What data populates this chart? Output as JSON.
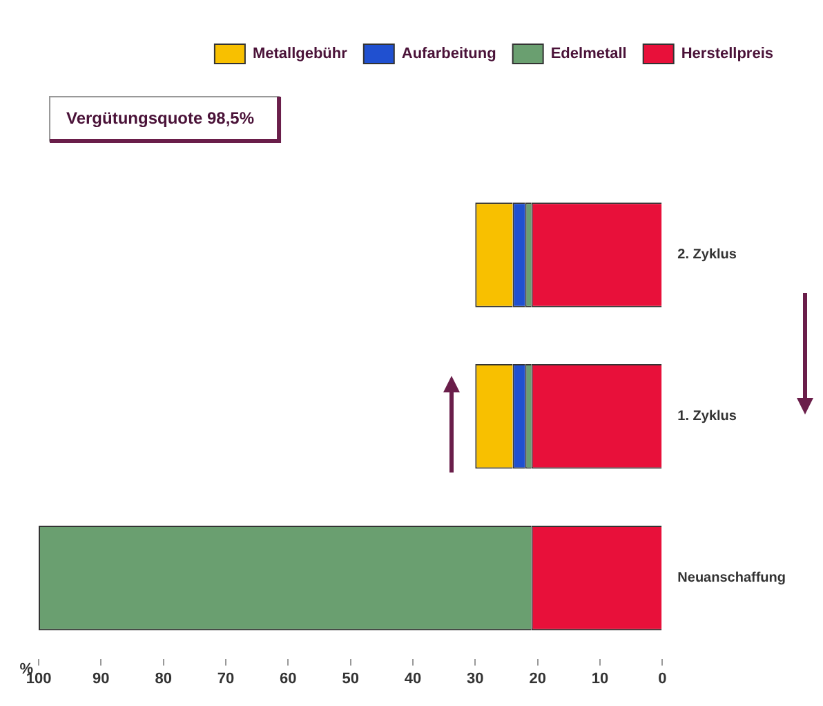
{
  "chart_data": {
    "type": "bar",
    "orientation": "horizontal",
    "stacked": true,
    "categories": [
      "2. Zyklus",
      "1. Zyklus",
      "Neuanschaffung"
    ],
    "series": [
      {
        "name": "Herstellpreis",
        "color": "#e8103a",
        "values": [
          21,
          21,
          21
        ]
      },
      {
        "name": "Edelmetall",
        "color": "#6a9f70",
        "values": [
          1,
          1,
          79
        ]
      },
      {
        "name": "Aufarbeitung",
        "color": "#2050d0",
        "values": [
          2,
          2,
          0
        ]
      },
      {
        "name": "Metallgebühr",
        "color": "#f8c000",
        "values": [
          6,
          6,
          0
        ]
      }
    ],
    "xlabel": "%",
    "xlim": [
      100,
      0
    ],
    "xticks": [
      100,
      90,
      80,
      70,
      60,
      50,
      40,
      30,
      20,
      10,
      0
    ],
    "grid": false,
    "legend": "top right",
    "annotations": [
      "Vergütungsquote 98,5%"
    ]
  }
}
